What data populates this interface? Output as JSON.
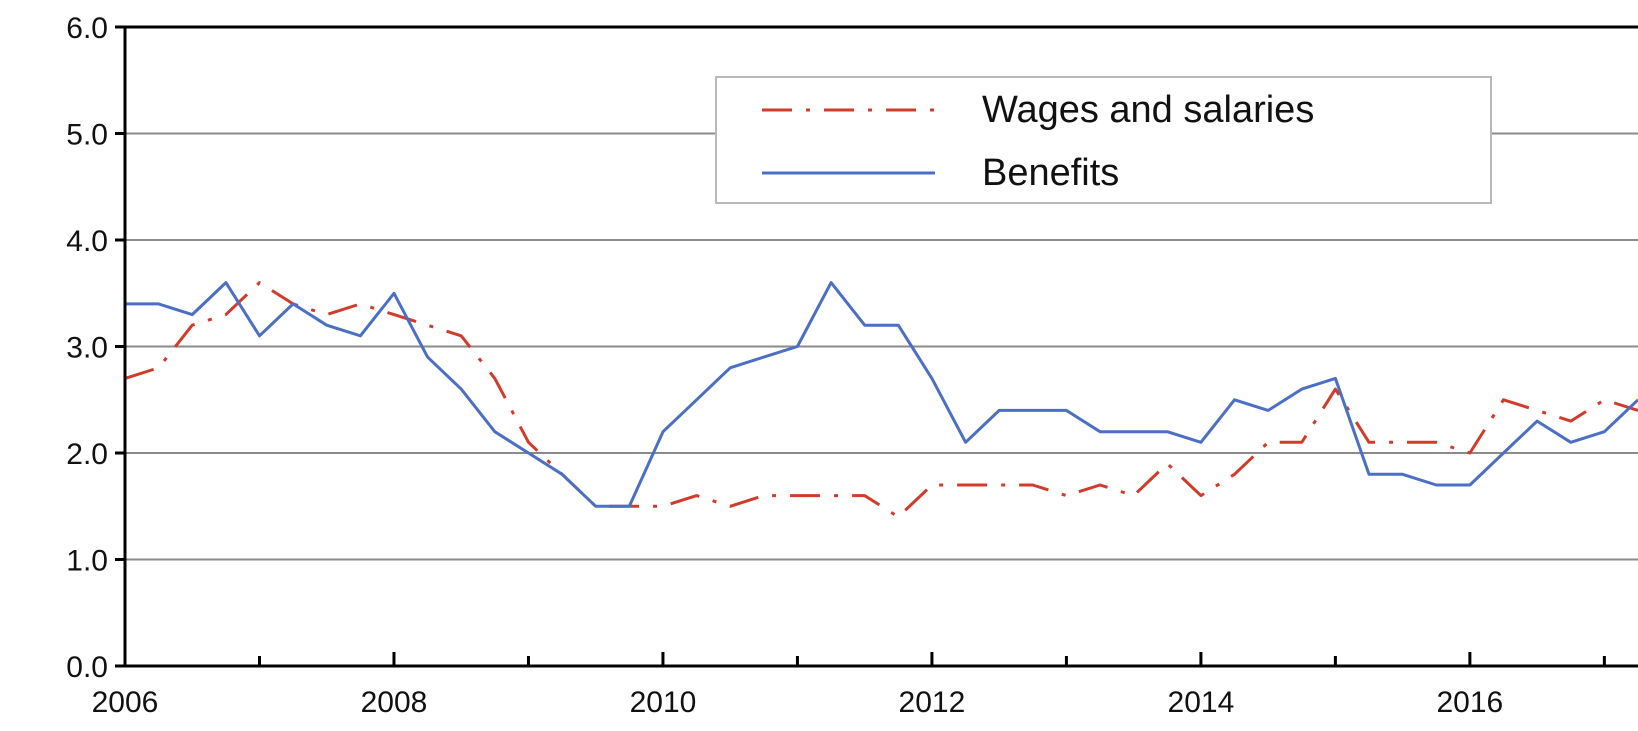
{
  "chart_data": {
    "type": "line",
    "title": "",
    "xlabel": "",
    "ylabel": "",
    "xlim": [
      2006,
      2017.25
    ],
    "ylim": [
      0,
      6
    ],
    "grid": true,
    "legend_position": "top-center",
    "x_ticks": [
      {
        "value": 2006,
        "label": "2006"
      },
      {
        "value": 2008,
        "label": "2008"
      },
      {
        "value": 2010,
        "label": "2010"
      },
      {
        "value": 2012,
        "label": "2012"
      },
      {
        "value": 2014,
        "label": "2014"
      },
      {
        "value": 2016,
        "label": "2016"
      }
    ],
    "y_ticks": [
      {
        "value": 0,
        "label": "0.0"
      },
      {
        "value": 1,
        "label": "1.0"
      },
      {
        "value": 2,
        "label": "2.0"
      },
      {
        "value": 3,
        "label": "3.0"
      },
      {
        "value": 4,
        "label": "4.0"
      },
      {
        "value": 5,
        "label": "5.0"
      },
      {
        "value": 6,
        "label": "6.0"
      }
    ],
    "x": [
      2006.0,
      2006.25,
      2006.5,
      2006.75,
      2007.0,
      2007.25,
      2007.5,
      2007.75,
      2008.0,
      2008.25,
      2008.5,
      2008.75,
      2009.0,
      2009.25,
      2009.5,
      2009.75,
      2010.0,
      2010.25,
      2010.5,
      2010.75,
      2011.0,
      2011.25,
      2011.5,
      2011.75,
      2012.0,
      2012.25,
      2012.5,
      2012.75,
      2013.0,
      2013.25,
      2013.5,
      2013.75,
      2014.0,
      2014.25,
      2014.5,
      2014.75,
      2015.0,
      2015.25,
      2015.5,
      2015.75,
      2016.0,
      2016.25,
      2016.5,
      2016.75,
      2017.0,
      2017.25
    ],
    "series": [
      {
        "name": "Wages and salaries",
        "style": "dash-dot",
        "color": "#d23a2a",
        "values": [
          2.7,
          2.8,
          3.2,
          3.3,
          3.6,
          3.4,
          3.3,
          3.4,
          3.3,
          3.2,
          3.1,
          2.7,
          2.1,
          1.8,
          1.5,
          1.5,
          1.5,
          1.6,
          1.5,
          1.6,
          1.6,
          1.6,
          1.6,
          1.4,
          1.7,
          1.7,
          1.7,
          1.7,
          1.6,
          1.7,
          1.6,
          1.9,
          1.6,
          1.8,
          2.1,
          2.1,
          2.6,
          2.1,
          2.1,
          2.1,
          2.0,
          2.5,
          2.4,
          2.3,
          2.5,
          2.4
        ]
      },
      {
        "name": "Benefits",
        "style": "solid",
        "color": "#4a6fc4",
        "values": [
          3.4,
          3.4,
          3.3,
          3.6,
          3.1,
          3.4,
          3.2,
          3.1,
          3.5,
          2.9,
          2.6,
          2.2,
          2.0,
          1.8,
          1.5,
          1.5,
          2.2,
          2.5,
          2.8,
          2.9,
          3.0,
          3.6,
          3.2,
          3.2,
          2.7,
          2.1,
          2.4,
          2.4,
          2.4,
          2.2,
          2.2,
          2.2,
          2.1,
          2.5,
          2.4,
          2.6,
          2.7,
          1.8,
          1.8,
          1.7,
          1.7,
          2.0,
          2.3,
          2.1,
          2.2,
          2.5
        ]
      }
    ]
  }
}
